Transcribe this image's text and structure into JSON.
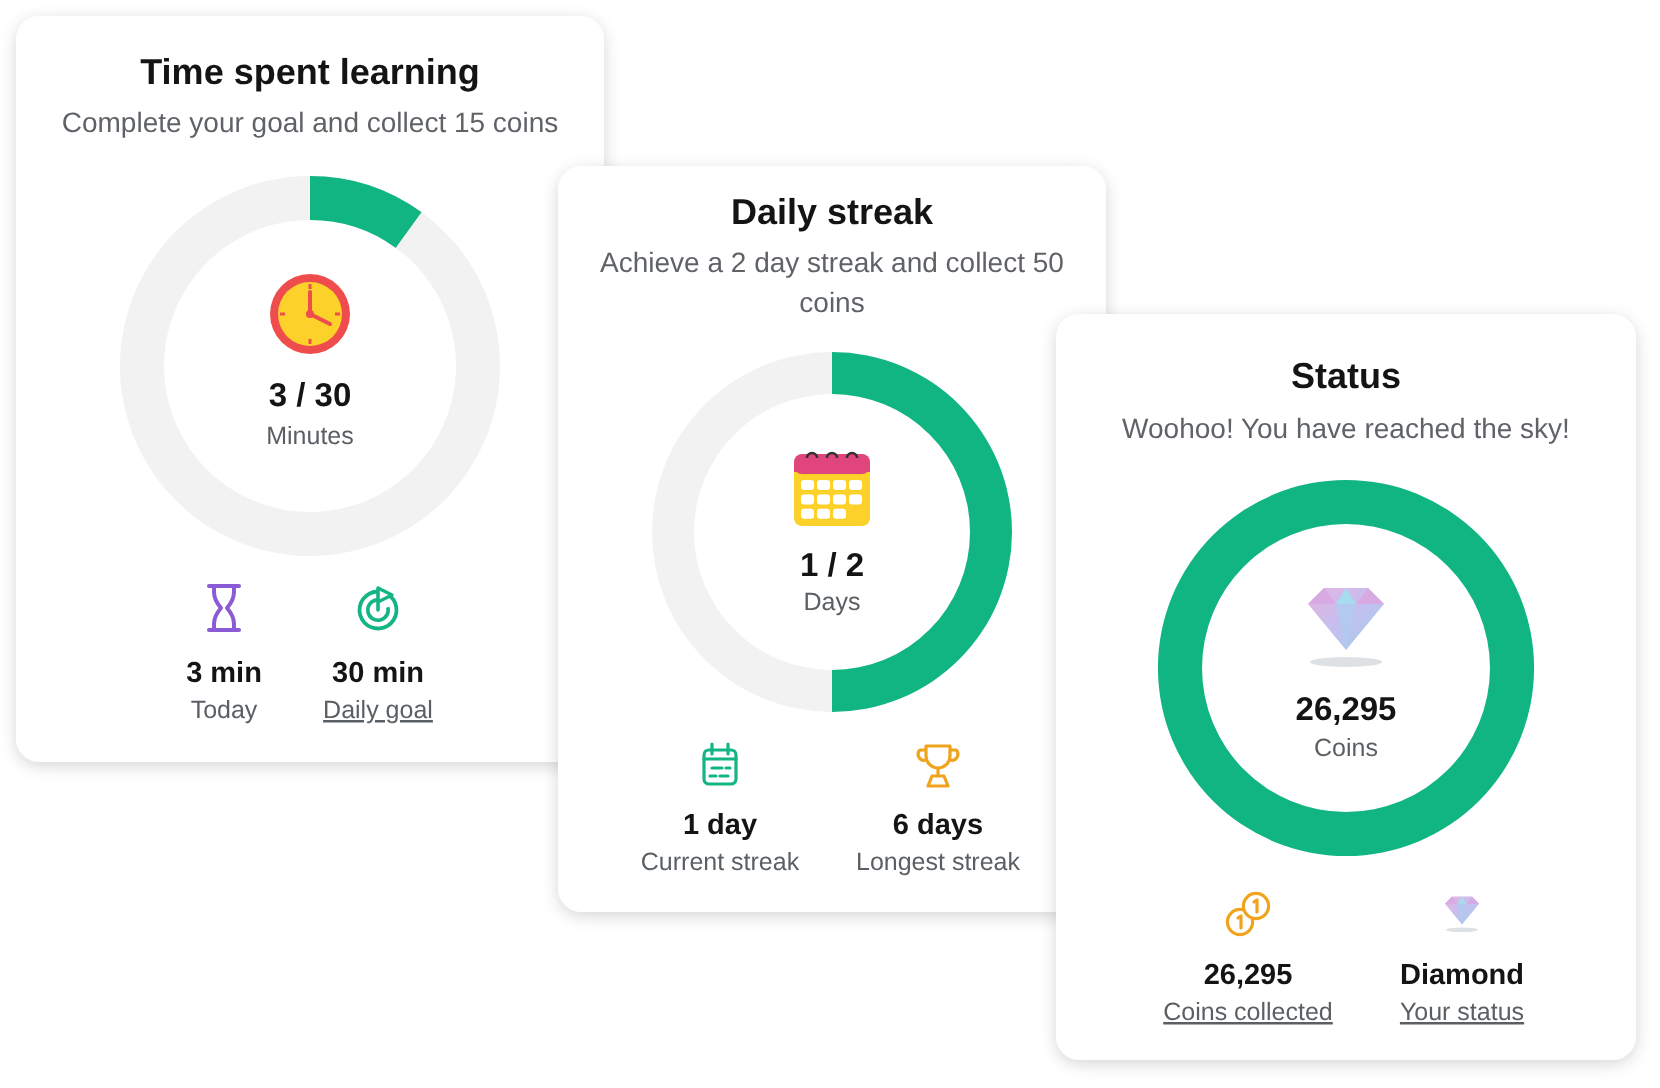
{
  "chart_data": [
    {
      "type": "donut",
      "title": "Time spent learning",
      "subtitle": "Complete your goal and collect 15 coins",
      "categories": [
        null,
        null
      ],
      "values": [
        10,
        90
      ],
      "colors": [
        "#10b582",
        "#f1f2f1"
      ],
      "annotations": [
        "3 / 30",
        "Minutes",
        "3 min",
        "Today",
        "30 min",
        "Daily goal"
      ]
    },
    {
      "type": "donut",
      "title": "Daily streak",
      "subtitle": "Achieve a 2 day streak and collect 50 coins",
      "categories": [
        null,
        null
      ],
      "values": [
        50,
        50
      ],
      "colors": [
        "#10b582",
        "#f1f2f1"
      ],
      "annotations": [
        "1 / 2",
        "Days",
        "1 day",
        "Current streak",
        "6 days",
        "Longest streak"
      ]
    },
    {
      "type": "donut",
      "title": "Status",
      "subtitle": "Woohoo! You have reached the sky!",
      "categories": [
        null
      ],
      "values": [
        100
      ],
      "colors": [
        "#10b582"
      ],
      "annotations": [
        "26,295",
        "Coins",
        "26,295",
        "Coins collected",
        "Diamond",
        "Your status"
      ]
    }
  ]
}
